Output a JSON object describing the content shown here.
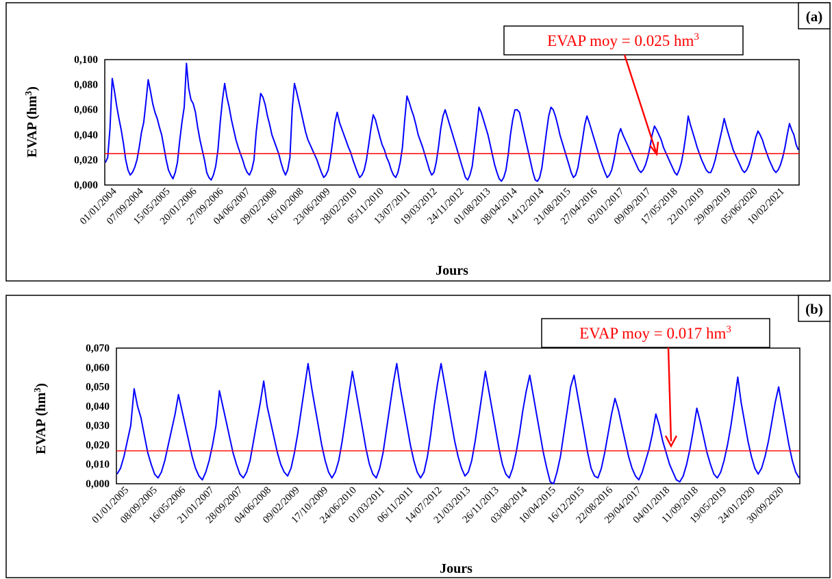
{
  "chart_data": [
    {
      "type": "line",
      "panel_label": "(a)",
      "xlabel": "Jours",
      "ylabel": "EVAP (hm³)",
      "ylim": [
        0,
        0.1
      ],
      "yticks": [
        "0,000",
        "0,020",
        "0,040",
        "0,060",
        "0,080",
        "0,100"
      ],
      "x_range": [
        "01/01/2004",
        "31/12/2021"
      ],
      "x_tick_labels": [
        "01/01/2004",
        "07/09/2004",
        "15/05/2005",
        "20/01/2006",
        "27/09/2006",
        "04/06/2007",
        "09/02/2008",
        "16/10/2008",
        "23/06/2009",
        "28/02/2010",
        "05/11/2010",
        "13/07/2011",
        "19/03/2012",
        "24/11/2012",
        "01/08/2013",
        "08/04/2014",
        "14/12/2014",
        "21/08/2015",
        "27/04/2016",
        "02/01/2017",
        "09/09/2017",
        "17/05/2018",
        "22/01/2019",
        "29/09/2019",
        "05/06/2020",
        "10/02/2021"
      ],
      "annotation": {
        "prefix": "EVAP moy = 0.025 hm",
        "sup": "3"
      },
      "mean": 0.025,
      "mean_color": "#ff0000",
      "series_color": "#0000ff",
      "grid": false,
      "series": [
        {
          "values": [
            0.018,
            0.022,
            0.045,
            0.085,
            0.075,
            0.063,
            0.053,
            0.044,
            0.033,
            0.02,
            0.012,
            0.008,
            0.01,
            0.014,
            0.02,
            0.03,
            0.042,
            0.05,
            0.066,
            0.084,
            0.075,
            0.065,
            0.058,
            0.053,
            0.046,
            0.04,
            0.03,
            0.02,
            0.012,
            0.008,
            0.005,
            0.01,
            0.018,
            0.035,
            0.05,
            0.062,
            0.097,
            0.077,
            0.068,
            0.065,
            0.058,
            0.046,
            0.036,
            0.028,
            0.02,
            0.01,
            0.006,
            0.004,
            0.008,
            0.015,
            0.028,
            0.05,
            0.068,
            0.081,
            0.07,
            0.062,
            0.052,
            0.044,
            0.036,
            0.03,
            0.025,
            0.02,
            0.014,
            0.01,
            0.008,
            0.012,
            0.02,
            0.042,
            0.058,
            0.073,
            0.07,
            0.064,
            0.055,
            0.048,
            0.04,
            0.035,
            0.03,
            0.025,
            0.018,
            0.012,
            0.008,
            0.012,
            0.022,
            0.06,
            0.081,
            0.074,
            0.066,
            0.058,
            0.05,
            0.042,
            0.036,
            0.032,
            0.028,
            0.024,
            0.02,
            0.015,
            0.01,
            0.006,
            0.008,
            0.012,
            0.022,
            0.035,
            0.05,
            0.058,
            0.05,
            0.045,
            0.04,
            0.035,
            0.03,
            0.026,
            0.02,
            0.015,
            0.01,
            0.006,
            0.008,
            0.012,
            0.02,
            0.032,
            0.045,
            0.056,
            0.052,
            0.045,
            0.038,
            0.032,
            0.028,
            0.022,
            0.018,
            0.012,
            0.008,
            0.006,
            0.01,
            0.018,
            0.03,
            0.052,
            0.071,
            0.066,
            0.06,
            0.055,
            0.048,
            0.04,
            0.035,
            0.03,
            0.024,
            0.018,
            0.012,
            0.008,
            0.01,
            0.018,
            0.03,
            0.045,
            0.055,
            0.06,
            0.054,
            0.048,
            0.042,
            0.036,
            0.03,
            0.024,
            0.018,
            0.012,
            0.006,
            0.004,
            0.008,
            0.015,
            0.03,
            0.045,
            0.062,
            0.058,
            0.052,
            0.046,
            0.04,
            0.032,
            0.024,
            0.016,
            0.01,
            0.005,
            0.003,
            0.006,
            0.012,
            0.024,
            0.04,
            0.052,
            0.06,
            0.06,
            0.058,
            0.05,
            0.042,
            0.034,
            0.026,
            0.018,
            0.01,
            0.004,
            0.003,
            0.006,
            0.014,
            0.028,
            0.042,
            0.055,
            0.062,
            0.06,
            0.055,
            0.048,
            0.04,
            0.034,
            0.028,
            0.022,
            0.016,
            0.01,
            0.006,
            0.008,
            0.014,
            0.025,
            0.036,
            0.048,
            0.055,
            0.05,
            0.044,
            0.038,
            0.032,
            0.026,
            0.02,
            0.015,
            0.01,
            0.006,
            0.008,
            0.012,
            0.02,
            0.03,
            0.04,
            0.045,
            0.04,
            0.036,
            0.032,
            0.028,
            0.024,
            0.02,
            0.016,
            0.012,
            0.01,
            0.012,
            0.016,
            0.022,
            0.03,
            0.04,
            0.047,
            0.044,
            0.04,
            0.036,
            0.03,
            0.026,
            0.022,
            0.018,
            0.014,
            0.01,
            0.008,
            0.012,
            0.018,
            0.028,
            0.04,
            0.055,
            0.048,
            0.042,
            0.036,
            0.03,
            0.025,
            0.02,
            0.016,
            0.012,
            0.01,
            0.01,
            0.014,
            0.02,
            0.028,
            0.036,
            0.044,
            0.053,
            0.046,
            0.04,
            0.034,
            0.028,
            0.024,
            0.02,
            0.016,
            0.012,
            0.01,
            0.012,
            0.016,
            0.022,
            0.03,
            0.038,
            0.043,
            0.04,
            0.036,
            0.03,
            0.025,
            0.02,
            0.016,
            0.012,
            0.01,
            0.012,
            0.016,
            0.022,
            0.03,
            0.04,
            0.049,
            0.044,
            0.04,
            0.032,
            0.028
          ]
        }
      ]
    },
    {
      "type": "line",
      "panel_label": "(b)",
      "xlabel": "Jours",
      "ylabel": "EVAP (hm³)",
      "ylim": [
        0,
        0.07
      ],
      "yticks": [
        "0,000",
        "0,010",
        "0,020",
        "0,030",
        "0,040",
        "0,050",
        "0,060",
        "0,070"
      ],
      "x_range": [
        "01/01/2005",
        "31/12/2020"
      ],
      "x_tick_labels": [
        "01/01/2005",
        "08/09/2005",
        "16/05/2006",
        "21/01/2007",
        "28/09/2007",
        "04/06/2008",
        "09/02/2009",
        "17/10/2009",
        "24/06/2010",
        "01/03/2011",
        "06/11/2011",
        "14/07/2012",
        "21/03/2013",
        "26/11/2013",
        "03/08/2014",
        "10/04/2015",
        "16/12/2015",
        "22/08/2016",
        "29/04/2017",
        "04/01/2018",
        "11/09/2018",
        "19/05/2019",
        "24/01/2020",
        "30/09/2020"
      ],
      "annotation": {
        "prefix": "EVAP moy = 0.017 hm",
        "sup": "3"
      },
      "mean": 0.017,
      "mean_color": "#ff0000",
      "series_color": "#0000ff",
      "grid": false,
      "series": [
        {
          "values": [
            0.005,
            0.008,
            0.014,
            0.022,
            0.03,
            0.049,
            0.04,
            0.034,
            0.025,
            0.016,
            0.01,
            0.005,
            0.003,
            0.006,
            0.012,
            0.02,
            0.028,
            0.036,
            0.046,
            0.038,
            0.03,
            0.022,
            0.014,
            0.008,
            0.004,
            0.002,
            0.006,
            0.012,
            0.02,
            0.03,
            0.048,
            0.04,
            0.032,
            0.024,
            0.016,
            0.01,
            0.005,
            0.003,
            0.006,
            0.012,
            0.022,
            0.032,
            0.042,
            0.053,
            0.04,
            0.032,
            0.024,
            0.016,
            0.01,
            0.006,
            0.004,
            0.008,
            0.016,
            0.026,
            0.038,
            0.05,
            0.062,
            0.05,
            0.04,
            0.03,
            0.02,
            0.012,
            0.006,
            0.003,
            0.006,
            0.012,
            0.022,
            0.034,
            0.046,
            0.058,
            0.048,
            0.038,
            0.028,
            0.018,
            0.01,
            0.005,
            0.003,
            0.008,
            0.016,
            0.028,
            0.04,
            0.052,
            0.062,
            0.05,
            0.04,
            0.03,
            0.02,
            0.012,
            0.006,
            0.003,
            0.006,
            0.014,
            0.026,
            0.04,
            0.052,
            0.062,
            0.052,
            0.042,
            0.032,
            0.022,
            0.014,
            0.008,
            0.004,
            0.006,
            0.012,
            0.022,
            0.034,
            0.046,
            0.058,
            0.048,
            0.038,
            0.028,
            0.018,
            0.01,
            0.005,
            0.003,
            0.008,
            0.016,
            0.026,
            0.038,
            0.048,
            0.056,
            0.046,
            0.036,
            0.026,
            0.016,
            0.008,
            0.001,
            0.0,
            0.006,
            0.014,
            0.026,
            0.038,
            0.05,
            0.056,
            0.046,
            0.036,
            0.026,
            0.016,
            0.008,
            0.004,
            0.003,
            0.008,
            0.016,
            0.026,
            0.036,
            0.044,
            0.038,
            0.03,
            0.022,
            0.014,
            0.008,
            0.004,
            0.002,
            0.006,
            0.012,
            0.018,
            0.026,
            0.036,
            0.03,
            0.022,
            0.016,
            0.01,
            0.006,
            0.002,
            0.001,
            0.004,
            0.01,
            0.018,
            0.028,
            0.039,
            0.032,
            0.024,
            0.016,
            0.01,
            0.005,
            0.003,
            0.006,
            0.012,
            0.02,
            0.03,
            0.042,
            0.055,
            0.042,
            0.032,
            0.022,
            0.014,
            0.008,
            0.005,
            0.008,
            0.014,
            0.022,
            0.032,
            0.042,
            0.05,
            0.04,
            0.03,
            0.02,
            0.012,
            0.006,
            0.003
          ]
        }
      ]
    }
  ]
}
